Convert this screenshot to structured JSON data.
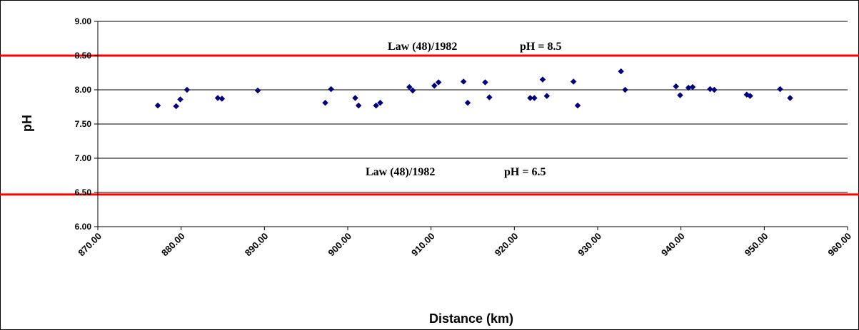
{
  "chart_data": {
    "type": "scatter",
    "title": "",
    "xlabel": "Distance (km)",
    "ylabel": "pH",
    "xlim": [
      870,
      960
    ],
    "ylim": [
      6,
      9
    ],
    "x_ticks": [
      "870.00",
      "880.00",
      "890.00",
      "900.00",
      "910.00",
      "920.00",
      "930.00",
      "940.00",
      "950.00",
      "960.00"
    ],
    "y_ticks": [
      "6.00",
      "6.50",
      "7.00",
      "7.50",
      "8.00",
      "8.50",
      "9.00"
    ],
    "grid": "horizontal",
    "marker_color": "#000080",
    "reference_line_color": "#ff0000",
    "reference_lines": [
      {
        "y": 8.5,
        "law": "Law (48)/1982",
        "label": "pH = 8.5"
      },
      {
        "y": 6.47,
        "law": "Law (48)/1982",
        "label": "pH = 6.5"
      }
    ],
    "series": [
      {
        "points": [
          {
            "x": 877.2,
            "y": 7.77
          },
          {
            "x": 879.4,
            "y": 7.76
          },
          {
            "x": 879.9,
            "y": 7.86
          },
          {
            "x": 880.7,
            "y": 8.0
          },
          {
            "x": 884.4,
            "y": 7.88
          },
          {
            "x": 884.9,
            "y": 7.87
          },
          {
            "x": 889.2,
            "y": 7.99
          },
          {
            "x": 897.3,
            "y": 7.81
          },
          {
            "x": 898.0,
            "y": 8.01
          },
          {
            "x": 900.9,
            "y": 7.88
          },
          {
            "x": 901.3,
            "y": 7.77
          },
          {
            "x": 903.4,
            "y": 7.77
          },
          {
            "x": 903.9,
            "y": 7.81
          },
          {
            "x": 907.4,
            "y": 8.04
          },
          {
            "x": 907.8,
            "y": 7.99
          },
          {
            "x": 910.4,
            "y": 8.06
          },
          {
            "x": 910.9,
            "y": 8.11
          },
          {
            "x": 913.9,
            "y": 8.12
          },
          {
            "x": 914.4,
            "y": 7.81
          },
          {
            "x": 916.5,
            "y": 8.11
          },
          {
            "x": 917.0,
            "y": 7.89
          },
          {
            "x": 921.9,
            "y": 7.88
          },
          {
            "x": 922.4,
            "y": 7.88
          },
          {
            "x": 923.4,
            "y": 8.15
          },
          {
            "x": 923.9,
            "y": 7.91
          },
          {
            "x": 927.1,
            "y": 8.12
          },
          {
            "x": 927.6,
            "y": 7.77
          },
          {
            "x": 932.8,
            "y": 8.27
          },
          {
            "x": 933.3,
            "y": 8.0
          },
          {
            "x": 939.4,
            "y": 8.05
          },
          {
            "x": 939.9,
            "y": 7.92
          },
          {
            "x": 940.9,
            "y": 8.03
          },
          {
            "x": 941.4,
            "y": 8.04
          },
          {
            "x": 943.5,
            "y": 8.01
          },
          {
            "x": 944.0,
            "y": 8.0
          },
          {
            "x": 947.9,
            "y": 7.93
          },
          {
            "x": 948.3,
            "y": 7.91
          },
          {
            "x": 951.9,
            "y": 8.01
          },
          {
            "x": 953.1,
            "y": 7.88
          }
        ]
      }
    ]
  }
}
